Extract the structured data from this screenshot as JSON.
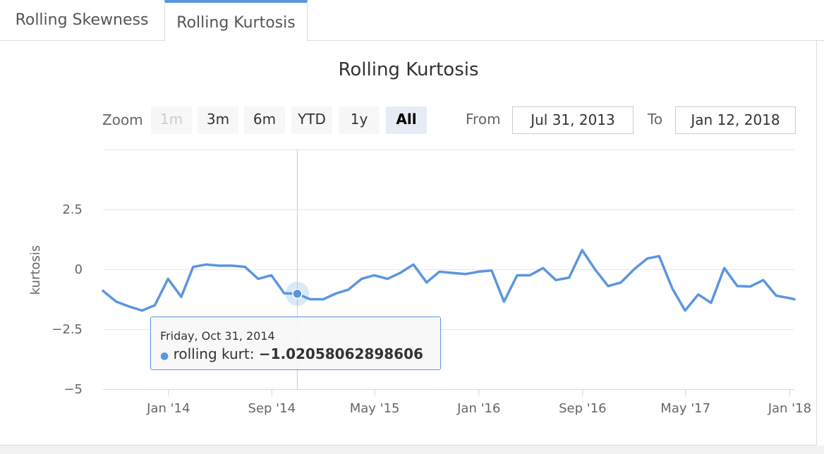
{
  "tabs": [
    {
      "label": "Rolling Skewness",
      "active": false
    },
    {
      "label": "Rolling Kurtosis",
      "active": true
    }
  ],
  "toolbar": {
    "zoom_label": "Zoom",
    "zoom_buttons": [
      {
        "label": "1m",
        "state": "disabled"
      },
      {
        "label": "3m",
        "state": "normal"
      },
      {
        "label": "6m",
        "state": "normal"
      },
      {
        "label": "YTD",
        "state": "normal"
      },
      {
        "label": "1y",
        "state": "normal"
      },
      {
        "label": "All",
        "state": "selected"
      }
    ],
    "from_label": "From",
    "from_value": "Jul 31, 2013",
    "to_label": "To",
    "to_value": "Jan 12, 2018"
  },
  "tooltip": {
    "date": "Friday, Oct 31, 2014",
    "series_label": "rolling kurt:",
    "value": "−1.02058062898606"
  },
  "colors": {
    "series": "#5b95e2",
    "tab_accent": "#5b95e2",
    "grid": "#e6e6e6"
  },
  "chart_data": {
    "type": "line",
    "title": "Rolling Kurtosis",
    "ylabel": "kurtosis",
    "xlabel": "",
    "series": [
      {
        "name": "rolling kurt",
        "points": [
          [
            "2013-07-31",
            -0.9
          ],
          [
            "2013-08-31",
            -1.35
          ],
          [
            "2013-09-30",
            -1.55
          ],
          [
            "2013-10-31",
            -1.72
          ],
          [
            "2013-11-30",
            -1.5
          ],
          [
            "2013-12-31",
            -0.4
          ],
          [
            "2014-01-31",
            -1.15
          ],
          [
            "2014-02-28",
            0.1
          ],
          [
            "2014-03-31",
            0.2
          ],
          [
            "2014-04-30",
            0.15
          ],
          [
            "2014-05-31",
            0.15
          ],
          [
            "2014-06-30",
            0.1
          ],
          [
            "2014-07-31",
            -0.4
          ],
          [
            "2014-08-31",
            -0.25
          ],
          [
            "2014-09-30",
            -1.0
          ],
          [
            "2014-10-31",
            -1.02058062898606
          ],
          [
            "2014-11-30",
            -1.25
          ],
          [
            "2014-12-31",
            -1.25
          ],
          [
            "2015-01-31",
            -1.0
          ],
          [
            "2015-02-28",
            -0.85
          ],
          [
            "2015-03-31",
            -0.4
          ],
          [
            "2015-04-30",
            -0.25
          ],
          [
            "2015-05-31",
            -0.4
          ],
          [
            "2015-06-30",
            -0.15
          ],
          [
            "2015-07-31",
            0.2
          ],
          [
            "2015-08-31",
            -0.55
          ],
          [
            "2015-09-30",
            -0.1
          ],
          [
            "2015-10-31",
            -0.15
          ],
          [
            "2015-11-30",
            -0.2
          ],
          [
            "2015-12-31",
            -0.1
          ],
          [
            "2016-01-31",
            -0.05
          ],
          [
            "2016-02-29",
            -1.35
          ],
          [
            "2016-03-31",
            -0.25
          ],
          [
            "2016-04-30",
            -0.25
          ],
          [
            "2016-05-31",
            0.05
          ],
          [
            "2016-06-30",
            -0.45
          ],
          [
            "2016-07-31",
            -0.35
          ],
          [
            "2016-08-31",
            0.8
          ],
          [
            "2016-09-30",
            0.0
          ],
          [
            "2016-10-31",
            -0.7
          ],
          [
            "2016-11-30",
            -0.55
          ],
          [
            "2016-12-31",
            0.0
          ],
          [
            "2017-01-31",
            0.45
          ],
          [
            "2017-02-28",
            0.55
          ],
          [
            "2017-03-31",
            -0.8
          ],
          [
            "2017-04-30",
            -1.72
          ],
          [
            "2017-05-31",
            -1.05
          ],
          [
            "2017-06-30",
            -1.4
          ],
          [
            "2017-07-31",
            0.05
          ],
          [
            "2017-08-31",
            -0.7
          ],
          [
            "2017-09-30",
            -0.72
          ],
          [
            "2017-10-31",
            -0.45
          ],
          [
            "2017-11-30",
            -1.1
          ],
          [
            "2017-12-31",
            -1.2
          ],
          [
            "2018-01-12",
            -1.25
          ]
        ]
      }
    ],
    "x_range": [
      "2013-07-31",
      "2018-01-12"
    ],
    "y_range": [
      -5,
      5
    ],
    "y_ticks": [
      {
        "value": 2.5,
        "label": "2.5"
      },
      {
        "value": 0,
        "label": "0"
      },
      {
        "value": -2.5,
        "label": "−2.5"
      },
      {
        "value": -5,
        "label": "−5"
      }
    ],
    "x_ticks": [
      {
        "date": "2014-01-01",
        "label": "Jan '14"
      },
      {
        "date": "2014-09-01",
        "label": "Sep '14"
      },
      {
        "date": "2015-05-01",
        "label": "May '15"
      },
      {
        "date": "2016-01-01",
        "label": "Jan '16"
      },
      {
        "date": "2016-09-01",
        "label": "Sep '16"
      },
      {
        "date": "2017-05-01",
        "label": "May '17"
      },
      {
        "date": "2018-01-01",
        "label": "Jan '18"
      }
    ],
    "highlighted_point": "2014-10-31",
    "grid": true,
    "legend": false
  }
}
